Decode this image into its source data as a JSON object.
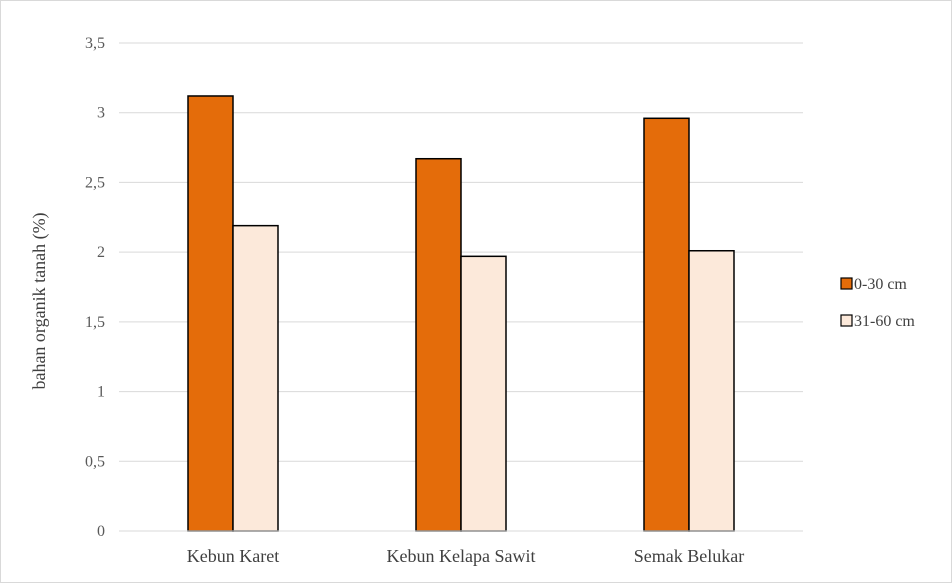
{
  "chart_data": {
    "type": "bar",
    "title": "",
    "xlabel": "",
    "ylabel": "bahan organik tanah (%)",
    "categories": [
      "Kebun Karet",
      "Kebun Kelapa Sawit",
      "Semak Belukar"
    ],
    "series": [
      {
        "name": "0-30 cm",
        "values": [
          3.12,
          2.67,
          2.96
        ],
        "color": "#E46C0A",
        "stroke": "#000000"
      },
      {
        "name": "31-60 cm",
        "values": [
          2.19,
          1.97,
          2.01
        ],
        "color": "#FCE9DA",
        "stroke": "#000000"
      }
    ],
    "ylim": [
      0,
      3.5
    ],
    "yticks": [
      "0",
      "0,5",
      "1",
      "1,5",
      "2",
      "2,5",
      "3",
      "3,5"
    ],
    "grid": true,
    "legend_position": "right",
    "gridline_color": "#d9d9d9"
  }
}
